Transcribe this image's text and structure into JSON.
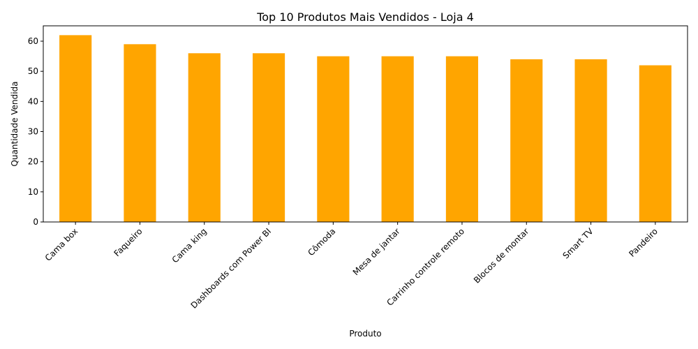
{
  "chart_data": {
    "type": "bar",
    "title": "Top 10 Produtos Mais Vendidos - Loja 4",
    "xlabel": "Produto",
    "ylabel": "Quantidade Vendida",
    "categories": [
      "Cama box",
      "Faqueiro",
      "Cama king",
      "Dashboards com Power BI",
      "Cômoda",
      "Mesa de jantar",
      "Carrinho controle remoto",
      "Blocos de montar",
      "Smart TV",
      "Pandeiro"
    ],
    "values": [
      62,
      59,
      56,
      56,
      55,
      55,
      55,
      54,
      54,
      52
    ],
    "ylim": [
      0,
      65.1
    ],
    "yticks": [
      0,
      10,
      20,
      30,
      40,
      50,
      60
    ],
    "grid": false,
    "legend": "none",
    "bar_color": "#ffa500"
  }
}
